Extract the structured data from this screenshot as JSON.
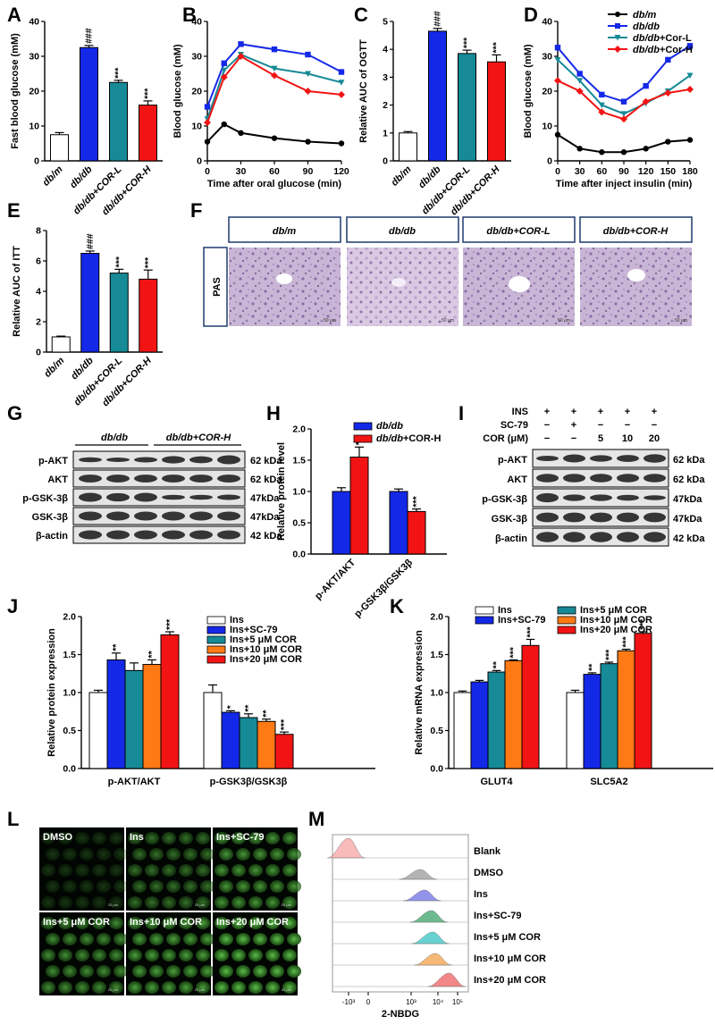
{
  "figure": {
    "panel_letters": [
      "A",
      "B",
      "C",
      "D",
      "E",
      "F",
      "G",
      "H",
      "I",
      "J",
      "K",
      "L",
      "M"
    ]
  },
  "groups4": [
    "db/m",
    "db/db",
    "db/db+COR-L",
    "db/db+COR-H"
  ],
  "colors": {
    "dbm": "#ffffff",
    "dbdb": "#1428e8",
    "corl": "#168a96",
    "corh": "#f21414",
    "ins": "#ffffff",
    "sc79": "#1428e8",
    "c5": "#168a96",
    "c10": "#ff7a14",
    "c20": "#f21414"
  },
  "chart_data": [
    {
      "id": "A",
      "type": "bar",
      "categories": [
        "db/m",
        "db/db",
        "db/db+COR-L",
        "db/db+COR-H"
      ],
      "values": [
        7.5,
        32.5,
        22.5,
        16.0
      ],
      "errors": [
        0.6,
        0.6,
        0.6,
        1.2
      ],
      "ylabel": "Fast blood glucose (mM)",
      "ylim": [
        0,
        40
      ],
      "yticks": [
        "0",
        "10",
        "20",
        "30",
        "40"
      ],
      "sig": [
        "",
        "###",
        "***",
        "***"
      ]
    },
    {
      "id": "B",
      "type": "line",
      "xlabel": "Time after oral glucose (min)",
      "ylabel": "Blood glucose (mM)",
      "x": [
        0,
        15,
        30,
        60,
        90,
        120
      ],
      "xticks": [
        "0",
        "30",
        "60",
        "90",
        "120"
      ],
      "ylim": [
        0,
        40
      ],
      "yticks": [
        "0",
        "10",
        "20",
        "30",
        "40"
      ],
      "series": [
        {
          "values": [
            5.5,
            10.5,
            8,
            6.5,
            5.5,
            5
          ]
        },
        {
          "values": [
            15.5,
            28,
            33.5,
            32,
            30.5,
            25.5
          ]
        },
        {
          "values": [
            12,
            26,
            30.5,
            26.5,
            25,
            22.5
          ]
        },
        {
          "values": [
            11,
            24,
            30,
            24.5,
            20,
            19
          ]
        }
      ]
    },
    {
      "id": "C",
      "type": "bar",
      "categories": [
        "db/m",
        "db/db",
        "db/db+COR-L",
        "db/db+COR-H"
      ],
      "values": [
        1.0,
        4.65,
        3.85,
        3.55
      ],
      "errors": [
        0.05,
        0.1,
        0.12,
        0.25
      ],
      "ylabel": "Relative AUC of OGTT",
      "ylim": [
        0,
        5
      ],
      "yticks": [
        "0",
        "1",
        "2",
        "3",
        "4",
        "5"
      ],
      "sig": [
        "",
        "###",
        "***",
        "***"
      ]
    },
    {
      "id": "D",
      "type": "line",
      "xlabel": "Time after inject insulin (min)",
      "ylabel": "Blood glucose (mM)",
      "x": [
        0,
        30,
        60,
        90,
        120,
        150,
        180
      ],
      "xticks": [
        "0",
        "30",
        "60",
        "90",
        "120",
        "150",
        "180"
      ],
      "ylim": [
        0,
        40
      ],
      "yticks": [
        "0",
        "10",
        "20",
        "30",
        "40"
      ],
      "legend": [
        "db/m",
        "db/db",
        "db/db+Cor-L",
        "db/db+Cor-H"
      ],
      "series": [
        {
          "name": "db/m",
          "values": [
            7.5,
            3.5,
            2.5,
            2.5,
            3.5,
            5.5,
            6
          ]
        },
        {
          "name": "db/db",
          "values": [
            32.5,
            25,
            19,
            17,
            21.5,
            29,
            33
          ]
        },
        {
          "name": "db/db+Cor-L",
          "values": [
            29,
            23,
            16,
            13.5,
            16.5,
            20,
            24.5
          ]
        },
        {
          "name": "db/db+Cor-H",
          "values": [
            23,
            20,
            14,
            12,
            17,
            19.5,
            20.5
          ]
        }
      ]
    },
    {
      "id": "E",
      "type": "bar",
      "categories": [
        "db/m",
        "db/db",
        "db/db+COR-L",
        "db/db+COR-H"
      ],
      "values": [
        1.0,
        6.5,
        5.2,
        4.8
      ],
      "errors": [
        0.05,
        0.15,
        0.25,
        0.6
      ],
      "ylabel": "Relative AUC of ITT",
      "ylim": [
        0,
        8
      ],
      "yticks": [
        "0",
        "2",
        "4",
        "6",
        "8"
      ],
      "sig": [
        "",
        "###",
        "***",
        "***"
      ]
    },
    {
      "id": "H",
      "type": "bar",
      "categories": [
        "p-AKT/AKT",
        "p-GSK3β/GSK3β"
      ],
      "ylabel": "Relative protein level",
      "ylim": [
        0,
        2.0
      ],
      "yticks": [
        "0.0",
        "0.5",
        "1.0",
        "1.5",
        "2.0"
      ],
      "legend": [
        "db/db",
        "db/db+COR-H"
      ],
      "series": [
        {
          "name": "db/db",
          "values": [
            1.0,
            1.0
          ],
          "errors": [
            0.06,
            0.04
          ]
        },
        {
          "name": "db/db+COR-H",
          "values": [
            1.55,
            0.68
          ],
          "errors": [
            0.16,
            0.04
          ]
        }
      ],
      "sig": [
        "**",
        "***"
      ]
    },
    {
      "id": "J",
      "type": "bar",
      "categories": [
        "p-AKT/AKT",
        "p-GSK3β/GSK3β"
      ],
      "ylabel": "Relative protein expression",
      "ylim": [
        0,
        2.0
      ],
      "yticks": [
        "0.0",
        "0.5",
        "1.0",
        "1.5",
        "2.0"
      ],
      "legend": [
        "Ins",
        "Ins+SC-79",
        "Ins+5 μM COR",
        "Ins+10 μM COR",
        "Ins+20 μM COR"
      ],
      "series": [
        {
          "name": "Ins",
          "values": [
            1.0,
            1.0
          ],
          "errors": [
            0.03,
            0.1
          ]
        },
        {
          "name": "Ins+SC-79",
          "values": [
            1.43,
            0.74
          ],
          "errors": [
            0.09,
            0.02
          ]
        },
        {
          "name": "Ins+5 μM COR",
          "values": [
            1.29,
            0.67
          ],
          "errors": [
            0.1,
            0.05
          ]
        },
        {
          "name": "Ins+10 μM COR",
          "values": [
            1.37,
            0.62
          ],
          "errors": [
            0.06,
            0.03
          ]
        },
        {
          "name": "Ins+20 μM COR",
          "values": [
            1.76,
            0.45
          ],
          "errors": [
            0.04,
            0.03
          ]
        }
      ],
      "sig": [
        [
          "",
          "**",
          "",
          "**",
          "***"
        ],
        [
          "",
          "*",
          "**",
          "**",
          "***"
        ]
      ]
    },
    {
      "id": "K",
      "type": "bar",
      "categories": [
        "GLUT4",
        "SLC5A2"
      ],
      "ylabel": "Relative mRNA expression",
      "ylim": [
        0,
        2.0
      ],
      "yticks": [
        "0.0",
        "0.5",
        "1.0",
        "1.5",
        "2.0"
      ],
      "legend": [
        "Ins",
        "Ins+SC-79",
        "Ins+5 μM COR",
        "Ins+10 μM COR",
        "Ins+20 μM COR"
      ],
      "series": [
        {
          "name": "Ins",
          "values": [
            1.0,
            1.0
          ],
          "errors": [
            0.02,
            0.03
          ]
        },
        {
          "name": "Ins+SC-79",
          "values": [
            1.14,
            1.24
          ],
          "errors": [
            0.02,
            0.02
          ]
        },
        {
          "name": "Ins+5 μM COR",
          "values": [
            1.27,
            1.38
          ],
          "errors": [
            0.02,
            0.02
          ]
        },
        {
          "name": "Ins+10 μM COR",
          "values": [
            1.42,
            1.55
          ],
          "errors": [
            0.01,
            0.02
          ]
        },
        {
          "name": "Ins+20 μM COR",
          "values": [
            1.62,
            1.78
          ],
          "errors": [
            0.08,
            0.02
          ]
        }
      ],
      "sig": [
        [
          "",
          "",
          "**",
          "***",
          "***"
        ],
        [
          "",
          "**",
          "***",
          "***",
          "***"
        ]
      ]
    }
  ],
  "panelF": {
    "headers": [
      "db/m",
      "db/db",
      "db/db+COR-L",
      "db/db+COR-H"
    ],
    "row_label": "PAS",
    "scale": "50 μm"
  },
  "panelG": {
    "group1": "db/db",
    "group2": "db/db+COR-H",
    "rows": [
      "p-AKT",
      "AKT",
      "p-GSK-3β",
      "GSK-3β",
      "β-actin"
    ],
    "kda": [
      "62 kDa",
      "62 kDa",
      "47kDa",
      "47kDa",
      "42 kDa"
    ]
  },
  "panelI": {
    "cond_labels": [
      "INS",
      "SC-79",
      "COR (μM)"
    ],
    "cond_values": [
      [
        "+",
        "+",
        "+",
        "+",
        "+"
      ],
      [
        "−",
        "+",
        "−",
        "−",
        "−"
      ],
      [
        "−",
        "−",
        "5",
        "10",
        "20"
      ]
    ],
    "rows": [
      "p-AKT",
      "AKT",
      "p-GSK-3β",
      "GSK-3β",
      "β-actin"
    ],
    "kda": [
      "62 kDa",
      "62 kDa",
      "47kDa",
      "47kDa",
      "42 kDa"
    ]
  },
  "panelL": {
    "tiles": [
      "DMSO",
      "Ins",
      "Ins+SC-79",
      "Ins+5 μM COR",
      "Ins+10 μM COR",
      "Ins+20 μM COR"
    ],
    "scale": "20 μm"
  },
  "panelM": {
    "rows": [
      "Blank",
      "DMSO",
      "Ins",
      "Ins+SC-79",
      "Ins+5 μM COR",
      "Ins+10 μM COR",
      "Ins+20 μM COR"
    ],
    "xlabel": "2-NBDG",
    "xticks": [
      "-10³",
      "0",
      "10³",
      "10⁴",
      "10⁵"
    ],
    "colors": [
      "#f7a3a3",
      "#9c9c9c",
      "#6f70e6",
      "#3ea36a",
      "#36c4c4",
      "#f3a14a",
      "#ee6060"
    ]
  }
}
